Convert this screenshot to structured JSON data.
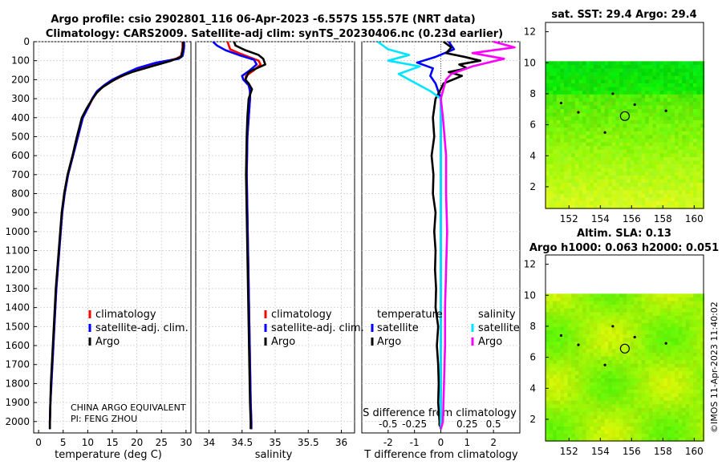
{
  "header": {
    "title_line1": "Argo profile: csio 2902801_116 06-Apr-2023 -6.557S 155.57E (NRT data)",
    "title_line2": "Climatology: CARS2009. Satellite-adj clim: synTS_20230406.nc (0.23d earlier)"
  },
  "credit": {
    "line1": "CHINA ARGO EQUIVALENT",
    "line2": "PI: FENG ZHOU",
    "watermark": "©IMOS 11-Apr-2023 11:40:02"
  },
  "colors": {
    "climatology": "#ff0000",
    "satellite": "#0000ff",
    "argo": "#000000",
    "sal_satellite": "#00e5ff",
    "sal_argo": "#ff00ff"
  },
  "legend": {
    "climatology": "climatology",
    "satellite_adj": "satellite-adj. clim.",
    "argo": "Argo",
    "temperature_head": "temperature",
    "salinity_head": "salinity",
    "satellite": "satellite",
    "argo_short": "Argo"
  },
  "maps": {
    "sst_title": "sat. SST: 29.4 Argo: 29.4",
    "sla_title1": "Altim. SLA: 0.13",
    "sla_title2": "Argo h1000: 0.063 h2000: 0.051",
    "x_ticks": [
      "152",
      "154",
      "156",
      "158",
      "160"
    ],
    "y_ticks": [
      "2",
      "4",
      "6",
      "8",
      "10",
      "12"
    ],
    "x_range": [
      150.5,
      160.6
    ],
    "y_range": [
      0.6,
      12.6
    ],
    "data_top_lat": 10.1,
    "argo_position": {
      "lon": 155.57,
      "lat": 6.557
    }
  },
  "chart_data": [
    {
      "type": "line",
      "name": "temperature-profile",
      "xlabel": "temperature (deg C)",
      "ylabel": "",
      "xlim": [
        -1,
        31
      ],
      "ylim": [
        2060,
        0
      ],
      "x_ticks": [
        "0",
        "5",
        "10",
        "15",
        "20",
        "25",
        "30"
      ],
      "y_ticks": [
        "0",
        "100",
        "200",
        "300",
        "400",
        "500",
        "600",
        "700",
        "800",
        "900",
        "1000",
        "1100",
        "1200",
        "1300",
        "1400",
        "1500",
        "1600",
        "1700",
        "1800",
        "1900",
        "2000"
      ],
      "series": [
        {
          "name": "climatology",
          "points": [
            [
              29.3,
              0
            ],
            [
              29.3,
              30
            ],
            [
              29.2,
              50
            ],
            [
              29.0,
              75
            ],
            [
              28.0,
              90
            ],
            [
              24.5,
              110
            ],
            [
              20.5,
              140
            ],
            [
              17.5,
              175
            ],
            [
              15.5,
              200
            ],
            [
              13.5,
              230
            ],
            [
              12.0,
              260
            ],
            [
              11.0,
              300
            ],
            [
              10.0,
              350
            ],
            [
              9.0,
              400
            ],
            [
              8.0,
              500
            ],
            [
              7.0,
              600
            ],
            [
              6.0,
              700
            ],
            [
              5.3,
              800
            ],
            [
              4.8,
              900
            ],
            [
              4.5,
              1000
            ],
            [
              4.2,
              1100
            ],
            [
              3.9,
              1200
            ],
            [
              3.6,
              1300
            ],
            [
              3.4,
              1400
            ],
            [
              3.2,
              1500
            ],
            [
              3.0,
              1600
            ],
            [
              2.8,
              1700
            ],
            [
              2.6,
              1800
            ],
            [
              2.4,
              1900
            ],
            [
              2.3,
              2000
            ],
            [
              2.3,
              2040
            ]
          ]
        },
        {
          "name": "satellite-adj. clim.",
          "points": [
            [
              29.6,
              0
            ],
            [
              29.6,
              30
            ],
            [
              29.5,
              50
            ],
            [
              29.3,
              75
            ],
            [
              28.5,
              90
            ],
            [
              24.0,
              110
            ],
            [
              20.0,
              140
            ],
            [
              17.0,
              175
            ],
            [
              15.0,
              200
            ],
            [
              13.3,
              230
            ],
            [
              11.9,
              260
            ],
            [
              10.9,
              300
            ],
            [
              10.0,
              350
            ],
            [
              9.0,
              400
            ],
            [
              8.0,
              500
            ],
            [
              7.0,
              600
            ],
            [
              6.0,
              700
            ],
            [
              5.3,
              800
            ],
            [
              4.8,
              900
            ],
            [
              4.5,
              1000
            ],
            [
              4.2,
              1100
            ],
            [
              3.9,
              1200
            ],
            [
              3.6,
              1300
            ],
            [
              3.4,
              1400
            ],
            [
              3.2,
              1500
            ],
            [
              3.0,
              1600
            ],
            [
              2.8,
              1700
            ],
            [
              2.6,
              1800
            ],
            [
              2.4,
              1900
            ],
            [
              2.3,
              2000
            ],
            [
              2.3,
              2040
            ]
          ]
        },
        {
          "name": "Argo",
          "points": [
            [
              29.4,
              0
            ],
            [
              29.4,
              30
            ],
            [
              29.3,
              50
            ],
            [
              29.0,
              80
            ],
            [
              27.0,
              100
            ],
            [
              23.0,
              130
            ],
            [
              19.0,
              160
            ],
            [
              16.5,
              185
            ],
            [
              14.8,
              210
            ],
            [
              13.0,
              240
            ],
            [
              11.8,
              270
            ],
            [
              11.0,
              300
            ],
            [
              9.8,
              350
            ],
            [
              8.8,
              400
            ],
            [
              7.8,
              500
            ],
            [
              6.9,
              600
            ],
            [
              5.9,
              700
            ],
            [
              5.2,
              800
            ],
            [
              4.7,
              900
            ],
            [
              4.4,
              1000
            ],
            [
              4.1,
              1100
            ],
            [
              3.8,
              1200
            ],
            [
              3.5,
              1300
            ],
            [
              3.3,
              1400
            ],
            [
              3.1,
              1500
            ],
            [
              2.9,
              1600
            ],
            [
              2.7,
              1700
            ],
            [
              2.5,
              1800
            ],
            [
              2.4,
              1900
            ],
            [
              2.3,
              2000
            ],
            [
              2.3,
              2040
            ]
          ]
        }
      ]
    },
    {
      "type": "line",
      "name": "salinity-profile",
      "xlabel": "salinity",
      "xlim": [
        33.8,
        36.2
      ],
      "ylim": [
        2060,
        0
      ],
      "x_ticks": [
        "34",
        "34.5",
        "35",
        "35.5",
        "36"
      ],
      "series": [
        {
          "name": "climatology",
          "points": [
            [
              34.28,
              0
            ],
            [
              34.32,
              40
            ],
            [
              34.45,
              60
            ],
            [
              34.6,
              80
            ],
            [
              34.75,
              100
            ],
            [
              34.78,
              120
            ],
            [
              34.68,
              150
            ],
            [
              34.56,
              180
            ],
            [
              34.55,
              200
            ],
            [
              34.6,
              230
            ],
            [
              34.62,
              260
            ],
            [
              34.62,
              300
            ],
            [
              34.6,
              400
            ],
            [
              34.58,
              500
            ],
            [
              34.57,
              700
            ],
            [
              34.58,
              900
            ],
            [
              34.59,
              1100
            ],
            [
              34.6,
              1300
            ],
            [
              34.61,
              1500
            ],
            [
              34.62,
              1700
            ],
            [
              34.63,
              1900
            ],
            [
              34.64,
              2000
            ],
            [
              34.64,
              2040
            ]
          ]
        },
        {
          "name": "satellite-adj. clim.",
          "points": [
            [
              34.06,
              0
            ],
            [
              34.12,
              20
            ],
            [
              34.25,
              45
            ],
            [
              34.45,
              70
            ],
            [
              34.68,
              95
            ],
            [
              34.72,
              120
            ],
            [
              34.62,
              150
            ],
            [
              34.5,
              180
            ],
            [
              34.52,
              200
            ],
            [
              34.6,
              230
            ],
            [
              34.62,
              260
            ],
            [
              34.62,
              300
            ],
            [
              34.6,
              400
            ],
            [
              34.58,
              500
            ],
            [
              34.57,
              700
            ],
            [
              34.58,
              900
            ],
            [
              34.59,
              1100
            ],
            [
              34.6,
              1300
            ],
            [
              34.61,
              1500
            ],
            [
              34.62,
              1700
            ],
            [
              34.63,
              1900
            ],
            [
              34.64,
              2000
            ],
            [
              34.64,
              2040
            ]
          ]
        },
        {
          "name": "Argo",
          "points": [
            [
              34.38,
              0
            ],
            [
              34.4,
              20
            ],
            [
              34.55,
              45
            ],
            [
              34.75,
              70
            ],
            [
              34.82,
              90
            ],
            [
              34.85,
              120
            ],
            [
              34.72,
              140
            ],
            [
              34.6,
              160
            ],
            [
              34.55,
              200
            ],
            [
              34.6,
              220
            ],
            [
              34.65,
              250
            ],
            [
              34.6,
              300
            ],
            [
              34.58,
              400
            ],
            [
              34.57,
              500
            ],
            [
              34.56,
              700
            ],
            [
              34.57,
              900
            ],
            [
              34.58,
              1100
            ],
            [
              34.59,
              1300
            ],
            [
              34.6,
              1500
            ],
            [
              34.61,
              1700
            ],
            [
              34.62,
              1900
            ],
            [
              34.63,
              2000
            ],
            [
              34.63,
              2040
            ]
          ]
        }
      ]
    },
    {
      "type": "line",
      "name": "difference-profile",
      "xlabel": "T difference from climatology",
      "top_axis_label": "S difference from climatology",
      "xlim": [
        -3,
        3
      ],
      "ylim": [
        2060,
        0
      ],
      "x_ticks": [
        "-2",
        "-1",
        "0",
        "1",
        "2"
      ],
      "s_ticks": [
        "-0.5",
        "-0.25",
        "0",
        "0.25",
        "0.5"
      ],
      "s_per_t": 0.25,
      "series": [
        {
          "name": "temperature satellite",
          "points": [
            [
              0.3,
              0
            ],
            [
              0.5,
              40
            ],
            [
              -0.2,
              80
            ],
            [
              -0.9,
              110
            ],
            [
              -0.3,
              140
            ],
            [
              -0.4,
              180
            ],
            [
              -0.2,
              220
            ],
            [
              -0.1,
              260
            ],
            [
              0,
              300
            ],
            [
              0,
              2040
            ]
          ]
        },
        {
          "name": "temperature Argo",
          "points": [
            [
              0.1,
              0
            ],
            [
              0.4,
              30
            ],
            [
              0.2,
              60
            ],
            [
              0.9,
              80
            ],
            [
              1.5,
              100
            ],
            [
              0.7,
              120
            ],
            [
              1.0,
              140
            ],
            [
              0.3,
              160
            ],
            [
              0.8,
              180
            ],
            [
              0.1,
              220
            ],
            [
              0.0,
              250
            ],
            [
              -0.2,
              300
            ],
            [
              -0.3,
              400
            ],
            [
              -0.25,
              500
            ],
            [
              -0.35,
              600
            ],
            [
              -0.28,
              700
            ],
            [
              -0.3,
              800
            ],
            [
              -0.2,
              900
            ],
            [
              -0.25,
              1000
            ],
            [
              -0.2,
              1100
            ],
            [
              -0.22,
              1200
            ],
            [
              -0.18,
              1300
            ],
            [
              -0.2,
              1400
            ],
            [
              -0.1,
              1500
            ],
            [
              -0.15,
              1600
            ],
            [
              -0.1,
              1700
            ],
            [
              -0.08,
              1800
            ],
            [
              -0.1,
              1900
            ],
            [
              -0.05,
              2000
            ],
            [
              0,
              2040
            ]
          ]
        },
        {
          "name": "salinity satellite",
          "points": [
            [
              -0.6,
              0
            ],
            [
              -0.5,
              40
            ],
            [
              -0.3,
              70
            ],
            [
              -0.5,
              100
            ],
            [
              -0.2,
              130
            ],
            [
              -0.4,
              170
            ],
            [
              -0.3,
              200
            ],
            [
              -0.1,
              260
            ],
            [
              0,
              300
            ],
            [
              0,
              2040
            ]
          ]
        },
        {
          "name": "salinity Argo",
          "points": [
            [
              0.5,
              0
            ],
            [
              0.7,
              30
            ],
            [
              0.3,
              60
            ],
            [
              0.6,
              90
            ],
            [
              0.3,
              130
            ],
            [
              0.1,
              170
            ],
            [
              0.05,
              200
            ],
            [
              0.0,
              300
            ],
            [
              0.02,
              400
            ],
            [
              0.05,
              600
            ],
            [
              0.05,
              800
            ],
            [
              0.06,
              1000
            ],
            [
              0.05,
              1200
            ],
            [
              0.04,
              1400
            ],
            [
              0.04,
              1600
            ],
            [
              0.03,
              1800
            ],
            [
              0.02,
              2000
            ],
            [
              0,
              2040
            ]
          ]
        }
      ]
    }
  ]
}
